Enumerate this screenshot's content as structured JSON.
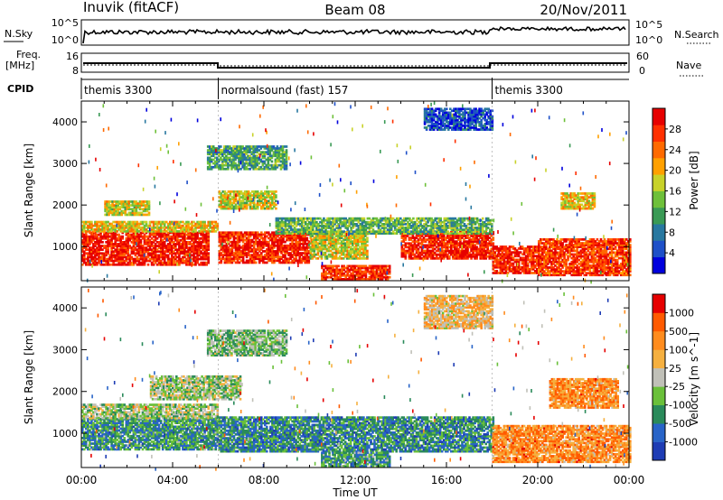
{
  "header": {
    "station": "Inuvik (fitACF)",
    "beam": "Beam 08",
    "date": "20/Nov/2011"
  },
  "noise_panel": {
    "left_label": "N.Sky",
    "right_label": "N.Search",
    "left_ticks": [
      "10^5",
      "10^0"
    ],
    "right_ticks": [
      "10^5",
      "10^0"
    ]
  },
  "freq_panel": {
    "left_label_1": "Freq.",
    "left_label_2": "[MHz]",
    "right_label": "Nave",
    "left_ticks": [
      "16",
      "8"
    ],
    "right_ticks": [
      "60",
      "0"
    ]
  },
  "cpid": {
    "label": "CPID",
    "segments": [
      {
        "name": "themis 3300",
        "start_hr": 0,
        "end_hr": 6
      },
      {
        "name": "normalsound (fast) 157",
        "start_hr": 6,
        "end_hr": 18
      },
      {
        "name": "themis 3300",
        "start_hr": 18,
        "end_hr": 24
      }
    ]
  },
  "chart_data": [
    {
      "type": "heatmap",
      "quantity": "power",
      "ylabel": "Slant Range [km]",
      "ylim": [
        180,
        4500
      ],
      "yticks": [
        "1000",
        "2000",
        "3000",
        "4000"
      ],
      "colorbar_label": "Power [dB]",
      "colorbar_ticks": [
        "28",
        "24",
        "20",
        "16",
        "12",
        "8",
        "4"
      ],
      "colors": [
        "#0000dd",
        "#1e50c8",
        "#2878a0",
        "#3a9a55",
        "#6ec03a",
        "#c8d22a",
        "#ffa000",
        "#ff6a00",
        "#ff3000",
        "#e60000"
      ],
      "regions": [
        {
          "t0": 0.0,
          "t1": 5.6,
          "r0": 550,
          "r1": 1350,
          "level": 0.92
        },
        {
          "t0": 0.0,
          "t1": 6.0,
          "r0": 1350,
          "r1": 1600,
          "level": 0.6
        },
        {
          "t0": 6.0,
          "t1": 10.0,
          "r0": 600,
          "r1": 1350,
          "level": 0.9
        },
        {
          "t0": 10.0,
          "t1": 12.5,
          "r0": 700,
          "r1": 1350,
          "level": 0.55
        },
        {
          "t0": 10.5,
          "t1": 13.5,
          "r0": 200,
          "r1": 520,
          "level": 0.88
        },
        {
          "t0": 14.0,
          "t1": 18.0,
          "r0": 700,
          "r1": 1350,
          "level": 0.9
        },
        {
          "t0": 18.0,
          "t1": 20.0,
          "r0": 350,
          "r1": 1000,
          "level": 0.9
        },
        {
          "t0": 20.0,
          "t1": 24.0,
          "r0": 300,
          "r1": 1200,
          "level": 0.85
        },
        {
          "t0": 1.0,
          "t1": 3.0,
          "r0": 1750,
          "r1": 2100,
          "level": 0.55
        },
        {
          "t0": 6.0,
          "t1": 8.5,
          "r0": 1900,
          "r1": 2350,
          "level": 0.55
        },
        {
          "t0": 5.5,
          "t1": 9.0,
          "r0": 2850,
          "r1": 3400,
          "level": 0.35
        },
        {
          "t0": 8.5,
          "t1": 18.0,
          "r0": 1300,
          "r1": 1700,
          "level": 0.4
        },
        {
          "t0": 15.0,
          "t1": 18.0,
          "r0": 3800,
          "r1": 4300,
          "level": 0.15
        },
        {
          "t0": 21.0,
          "t1": 22.5,
          "r0": 1900,
          "r1": 2300,
          "level": 0.6
        }
      ]
    },
    {
      "type": "heatmap",
      "quantity": "velocity",
      "ylabel": "Slant Range [km]",
      "ylim": [
        180,
        4500
      ],
      "yticks": [
        "1000",
        "2000",
        "3000",
        "4000"
      ],
      "colorbar_label": "Velocity [m s^-1]",
      "colorbar_ticks": [
        "1000",
        "500",
        "100",
        "25",
        "-25",
        "-100",
        "-500",
        "-1000"
      ],
      "colors": [
        "#1e3cb4",
        "#2864c8",
        "#2a8a5a",
        "#6ac03a",
        "#c0c0b8",
        "#f5b040",
        "#ff8c1e",
        "#ff5a00",
        "#e60000"
      ],
      "regions": [
        {
          "t0": 0.0,
          "t1": 6.0,
          "r0": 600,
          "r1": 1350,
          "level": 0.28
        },
        {
          "t0": 0.0,
          "t1": 6.0,
          "r0": 1350,
          "r1": 1700,
          "level": 0.45
        },
        {
          "t0": 6.0,
          "t1": 18.0,
          "r0": 550,
          "r1": 1400,
          "level": 0.25
        },
        {
          "t0": 10.5,
          "t1": 13.5,
          "r0": 200,
          "r1": 520,
          "level": 0.3
        },
        {
          "t0": 3.0,
          "t1": 7.0,
          "r0": 1800,
          "r1": 2350,
          "level": 0.45
        },
        {
          "t0": 5.5,
          "t1": 9.0,
          "r0": 2850,
          "r1": 3450,
          "level": 0.4
        },
        {
          "t0": 18.0,
          "t1": 24.0,
          "r0": 300,
          "r1": 1200,
          "level": 0.72
        },
        {
          "t0": 20.5,
          "t1": 23.5,
          "r0": 1600,
          "r1": 2300,
          "level": 0.72
        },
        {
          "t0": 15.0,
          "t1": 18.0,
          "r0": 3500,
          "r1": 4300,
          "level": 0.6
        }
      ]
    }
  ],
  "x_axis": {
    "label": "Time UT",
    "ticks": [
      "00:00",
      "04:00",
      "08:00",
      "12:00",
      "16:00",
      "20:00",
      "00:00"
    ]
  }
}
